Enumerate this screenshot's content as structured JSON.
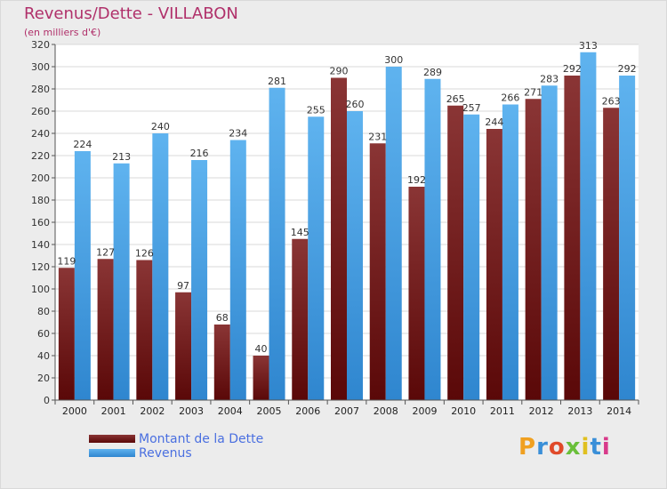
{
  "title": "Revenus/Dette - VILLABON",
  "subtitle": "(en milliers d'€)",
  "logo_text": "Proxiti",
  "colors": {
    "debt": "#7a2020",
    "revenue": "#4aa3e8",
    "title": "#b0306a",
    "legend_text": "#4a6fe0",
    "background": "#ececec"
  },
  "legend": [
    {
      "label": "Montant de la Dette"
    },
    {
      "label": "Revenus"
    }
  ],
  "chart_data": {
    "type": "bar",
    "title": "Revenus/Dette - VILLABON",
    "subtitle": "(en milliers d'€)",
    "categories": [
      "2000",
      "2001",
      "2002",
      "2003",
      "2004",
      "2005",
      "2006",
      "2007",
      "2008",
      "2009",
      "2010",
      "2011",
      "2012",
      "2013",
      "2014"
    ],
    "series": [
      {
        "name": "Montant de la Dette",
        "values": [
          119,
          127,
          126,
          97,
          68,
          40,
          145,
          290,
          231,
          192,
          265,
          244,
          271,
          292,
          263
        ]
      },
      {
        "name": "Revenus",
        "values": [
          224,
          213,
          240,
          216,
          234,
          281,
          255,
          260,
          300,
          289,
          257,
          266,
          283,
          313,
          292
        ]
      }
    ],
    "ylim": [
      0,
      320
    ],
    "yticks": [
      0,
      20,
      40,
      60,
      80,
      100,
      120,
      140,
      160,
      180,
      200,
      220,
      240,
      260,
      280,
      300,
      320
    ],
    "grid": true,
    "legend_position": "bottom-left"
  }
}
